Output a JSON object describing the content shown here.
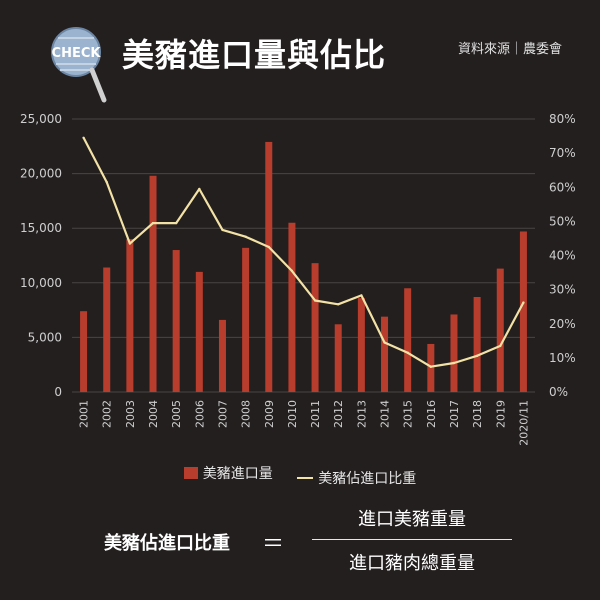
{
  "header": {
    "logo_text": "CHECK",
    "title": "美豬進口量與佔比",
    "source": "資料來源｜農委會"
  },
  "colors": {
    "background": "#231f1f",
    "bar": "#b83d2d",
    "line": "#f3e2a6",
    "grid": "#4a4545",
    "axis_text": "#cfcfcf"
  },
  "chart_data": {
    "type": "bar+line",
    "categories": [
      "2001",
      "2002",
      "2003",
      "2004",
      "2005",
      "2006",
      "2007",
      "2008",
      "2009",
      "2010",
      "2011",
      "2012",
      "2013",
      "2014",
      "2015",
      "2016",
      "2017",
      "2018",
      "2019",
      "2020/11"
    ],
    "series": [
      {
        "name": "美豬進口量",
        "type": "bar",
        "axis": "left",
        "values": [
          7400,
          11400,
          14000,
          19800,
          13000,
          11000,
          6600,
          13200,
          22900,
          15500,
          11800,
          6200,
          8600,
          6900,
          9500,
          4400,
          7100,
          8700,
          11300,
          14700
        ]
      },
      {
        "name": "美豬佔進口比重",
        "type": "line",
        "axis": "right",
        "values": [
          74.5,
          61.5,
          43.5,
          49.5,
          49.5,
          59.5,
          47.5,
          45.5,
          42.5,
          35.5,
          26.8,
          25.7,
          28.3,
          14.5,
          11.5,
          7.4,
          8.5,
          10.6,
          13.5,
          26.2
        ]
      }
    ],
    "left_axis": {
      "ylim": [
        0,
        25000
      ],
      "ticks": [
        "0",
        "5,000",
        "10,000",
        "15,000",
        "20,000",
        "25,000"
      ],
      "tick_values": [
        0,
        5000,
        10000,
        15000,
        20000,
        25000
      ]
    },
    "right_axis": {
      "ylim": [
        0,
        80
      ],
      "ticks": [
        "0%",
        "10%",
        "20%",
        "30%",
        "40%",
        "50%",
        "60%",
        "70%",
        "80%"
      ],
      "tick_values": [
        0,
        10,
        20,
        30,
        40,
        50,
        60,
        70,
        80
      ]
    },
    "grid": true,
    "legend_position": "bottom"
  },
  "legend": {
    "bar_label": "美豬進口量",
    "line_label": "美豬佔進口比重"
  },
  "formula": {
    "label": "美豬佔進口比重",
    "equals": "＝",
    "numerator": "進口美豬重量",
    "denominator": "進口豬肉總重量"
  }
}
